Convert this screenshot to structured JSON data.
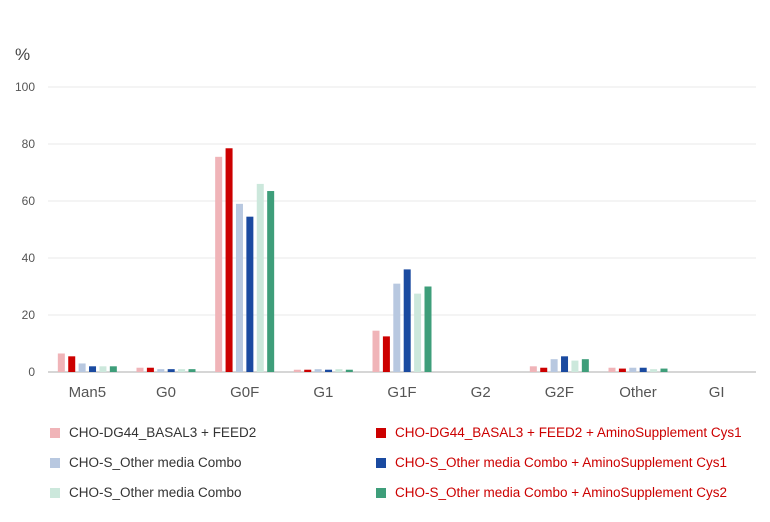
{
  "chart_data": {
    "type": "bar",
    "unit_label": "%",
    "categories": [
      "Man5",
      "G0",
      "G0F",
      "G1",
      "G1F",
      "G2",
      "G2F",
      "Other",
      "GI"
    ],
    "ylim": [
      0,
      100
    ],
    "yticks": [
      0,
      20,
      40,
      60,
      80,
      100
    ],
    "grid": true,
    "legend_position": "bottom",
    "series": [
      {
        "name": "CHO-DG44_BASAL3 + FEED2",
        "color": "#f0b4b8",
        "label_color": "#333333",
        "values": [
          6.5,
          1.5,
          75.5,
          0.8,
          14.5,
          0,
          2,
          1.5,
          0
        ]
      },
      {
        "name": "CHO-DG44_BASAL3 + FEED2 + AminoSupplement Cys1",
        "color": "#cc0000",
        "label_color": "#cc0000",
        "values": [
          5.5,
          1.5,
          78.5,
          0.8,
          12.5,
          0,
          1.5,
          1.2,
          0
        ]
      },
      {
        "name": "CHO-S_Other media Combo",
        "color": "#b8c8e0",
        "label_color": "#333333",
        "values": [
          3,
          1,
          59,
          1,
          31,
          0,
          4.5,
          1.5,
          0
        ]
      },
      {
        "name": "CHO-S_Other media Combo + AminoSupplement Cys1",
        "color": "#1a4aa0",
        "label_color": "#cc0000",
        "values": [
          2,
          1,
          54.5,
          0.8,
          36,
          0,
          5.5,
          1.5,
          0
        ]
      },
      {
        "name": "CHO-S_Other media Combo",
        "color": "#cce8dc",
        "label_color": "#333333",
        "values": [
          2,
          1,
          66,
          1,
          27.5,
          0,
          4,
          1,
          0
        ]
      },
      {
        "name": "CHO-S_Other media Combo + AminoSupplement Cys2",
        "color": "#3e9e7a",
        "label_color": "#cc0000",
        "values": [
          2,
          1,
          63.5,
          0.8,
          30,
          0,
          4.5,
          1.2,
          0
        ]
      }
    ]
  }
}
